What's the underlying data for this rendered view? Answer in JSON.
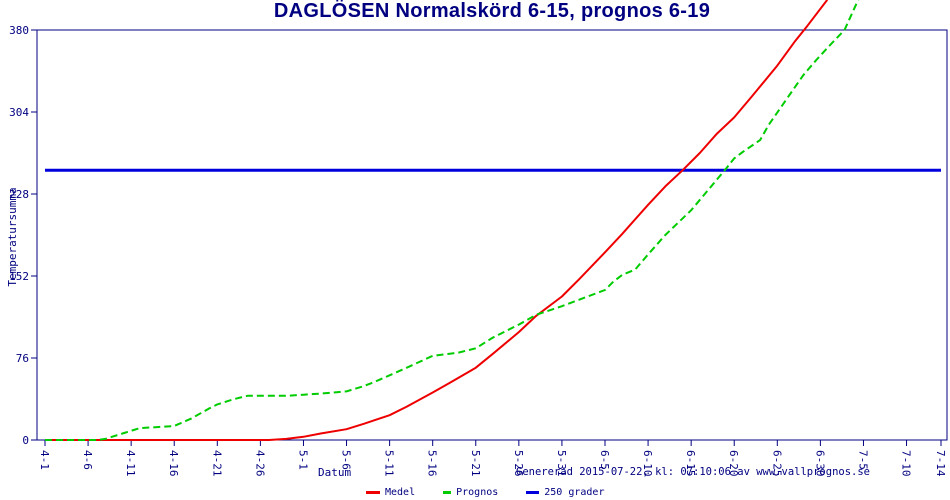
{
  "title": "DAGLÖSEN Normalskörd 6-15, prognos 6-19",
  "footer": {
    "generated_text": "Genererad 2015-07-22, kl: 07:10:06 av www.vallprognos.se"
  },
  "colors": {
    "axis": "#000080",
    "background": "#ffffff",
    "medel": "#ee0000",
    "prognos": "#00cc00",
    "grader250": "#0000dd"
  },
  "chart_data": {
    "type": "line",
    "title": "DAGLÖSEN Normalskörd 6-15, prognos 6-19",
    "xlabel": "Datum",
    "ylabel": "Temperatursumma",
    "legend_position": "bottom-center",
    "grid": false,
    "ylim": [
      0,
      380
    ],
    "y_ticks": [
      0,
      76,
      152,
      228,
      304,
      380
    ],
    "x_tick_labels": [
      "4-1",
      "4-6",
      "4-11",
      "4-16",
      "4-21",
      "4-26",
      "5-1",
      "5-6",
      "5-11",
      "5-16",
      "5-21",
      "5-26",
      "5-31",
      "6-5",
      "6-10",
      "6-15",
      "6-20",
      "6-25",
      "6-30",
      "7-5",
      "7-10",
      "7-14"
    ],
    "x_tick_days": [
      0,
      5,
      10,
      15,
      20,
      25,
      30,
      35,
      40,
      45,
      50,
      55,
      60,
      65,
      70,
      75,
      80,
      85,
      90,
      95,
      100,
      104
    ],
    "x_range_days": [
      0,
      104
    ],
    "reference_value": 250,
    "series": [
      {
        "name": "Medel",
        "color": "#ee0000",
        "style": "solid",
        "width": 2,
        "points": [
          [
            0,
            0
          ],
          [
            5,
            0
          ],
          [
            10,
            0
          ],
          [
            15,
            0
          ],
          [
            20,
            0
          ],
          [
            25,
            0
          ],
          [
            26,
            0
          ],
          [
            28,
            1
          ],
          [
            30,
            3
          ],
          [
            32,
            6
          ],
          [
            35,
            10
          ],
          [
            37,
            15
          ],
          [
            40,
            23
          ],
          [
            42,
            31
          ],
          [
            45,
            44
          ],
          [
            47,
            53
          ],
          [
            50,
            67
          ],
          [
            52,
            80
          ],
          [
            55,
            100
          ],
          [
            57,
            115
          ],
          [
            60,
            133
          ],
          [
            62,
            149
          ],
          [
            65,
            174
          ],
          [
            67,
            191
          ],
          [
            70,
            218
          ],
          [
            72,
            235
          ],
          [
            74,
            250
          ],
          [
            76,
            266
          ],
          [
            78,
            284
          ],
          [
            80,
            299
          ],
          [
            82,
            318
          ],
          [
            85,
            347
          ],
          [
            87,
            369
          ],
          [
            88.5,
            384
          ],
          [
            90.8,
            408
          ]
        ]
      },
      {
        "name": "Prognos",
        "color": "#00cc00",
        "style": "dashed",
        "width": 2,
        "points": [
          [
            0,
            0
          ],
          [
            6,
            0
          ],
          [
            7,
            1
          ],
          [
            9,
            6
          ],
          [
            11,
            11
          ],
          [
            13,
            12
          ],
          [
            15,
            13
          ],
          [
            17,
            20
          ],
          [
            19,
            29
          ],
          [
            20,
            33
          ],
          [
            22,
            38
          ],
          [
            23.5,
            41
          ],
          [
            26,
            41
          ],
          [
            28,
            41
          ],
          [
            30,
            42
          ],
          [
            32,
            43
          ],
          [
            35,
            45
          ],
          [
            37,
            50
          ],
          [
            38,
            53
          ],
          [
            40,
            60
          ],
          [
            42,
            67
          ],
          [
            45,
            78
          ],
          [
            47,
            80
          ],
          [
            48,
            81
          ],
          [
            50,
            85
          ],
          [
            52,
            95
          ],
          [
            55,
            107
          ],
          [
            57,
            116
          ],
          [
            60,
            124
          ],
          [
            62,
            130
          ],
          [
            65,
            139
          ],
          [
            66,
            147
          ],
          [
            67,
            153
          ],
          [
            68.5,
            158
          ],
          [
            70,
            172
          ],
          [
            72,
            190
          ],
          [
            75,
            213
          ],
          [
            77,
            232
          ],
          [
            79,
            251
          ],
          [
            80,
            261
          ],
          [
            81,
            267
          ],
          [
            83,
            278
          ],
          [
            84,
            292
          ],
          [
            86,
            315
          ],
          [
            88,
            338
          ],
          [
            89.5,
            352
          ],
          [
            91,
            365
          ],
          [
            92.8,
            380
          ],
          [
            94.5,
            410
          ]
        ]
      },
      {
        "name": "250 grader",
        "color": "#0000dd",
        "style": "solid",
        "width": 3,
        "points": [
          [
            0,
            250
          ],
          [
            104,
            250
          ]
        ]
      }
    ]
  }
}
